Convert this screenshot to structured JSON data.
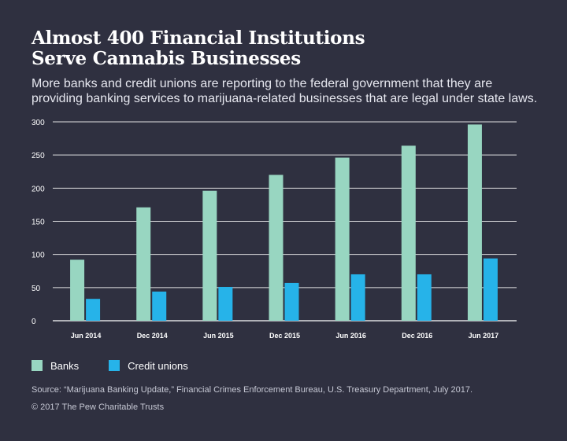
{
  "colors": {
    "banks": "#98d6c1",
    "credit_unions": "#26b3e9",
    "background": "#2f3040",
    "grid": "#ffffff"
  },
  "header": {
    "title_line1": "Almost 400 Financial Institutions",
    "title_line2": "Serve Cannabis Businesses",
    "subtitle": "More banks and credit unions are reporting to the federal government that they are providing banking services to marijuana-related businesses that are legal under state laws."
  },
  "legend": {
    "banks_label": "Banks",
    "credit_unions_label": "Credit unions"
  },
  "footer": {
    "source": "Source: “Marijuana Banking Update,” Financial Crimes Enforcement Bureau, U.S. Treasury Department, July 2017.",
    "copyright": "© 2017 The Pew Charitable Trusts"
  },
  "chart_data": {
    "type": "bar",
    "categories": [
      "Jun 2014",
      "Dec 2014",
      "Jun 2015",
      "Dec 2015",
      "Jun 2016",
      "Dec 2016",
      "Jun 2017"
    ],
    "series": [
      {
        "name": "Banks",
        "values": [
          92,
          171,
          196,
          220,
          246,
          264,
          296
        ]
      },
      {
        "name": "Credit unions",
        "values": [
          33,
          44,
          51,
          57,
          70,
          70,
          94
        ]
      }
    ],
    "ylim": [
      0,
      300
    ],
    "yticks": [
      0,
      50,
      100,
      150,
      200,
      250,
      300
    ],
    "grid": true,
    "legend_position": "bottom-left"
  }
}
